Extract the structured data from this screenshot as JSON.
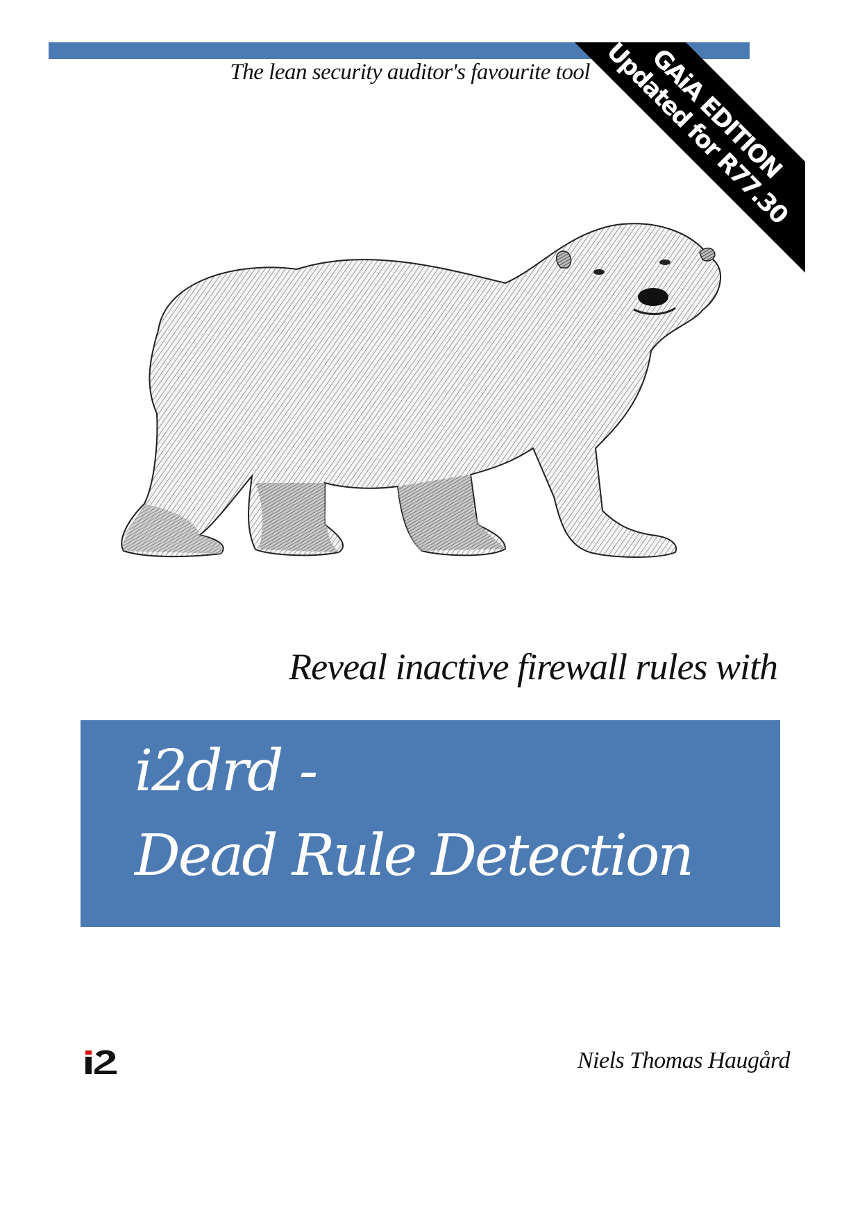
{
  "colors": {
    "accent_blue": "#4c7ab3",
    "banner_black": "#000000",
    "text_dark": "#111111"
  },
  "header": {
    "tagline": "The lean security auditor's favourite tool"
  },
  "corner_banner": {
    "line1": "GAiA EDITION",
    "line2": "Updated for R77.30"
  },
  "illustration": {
    "icon": "polar-bear-illustration"
  },
  "subtitle": "Reveal inactive firewall rules with",
  "title": {
    "line1": "i2drd -",
    "line2": "Dead Rule Detection"
  },
  "footer": {
    "logo_text": "i2",
    "author": "Niels Thomas Haugård"
  }
}
